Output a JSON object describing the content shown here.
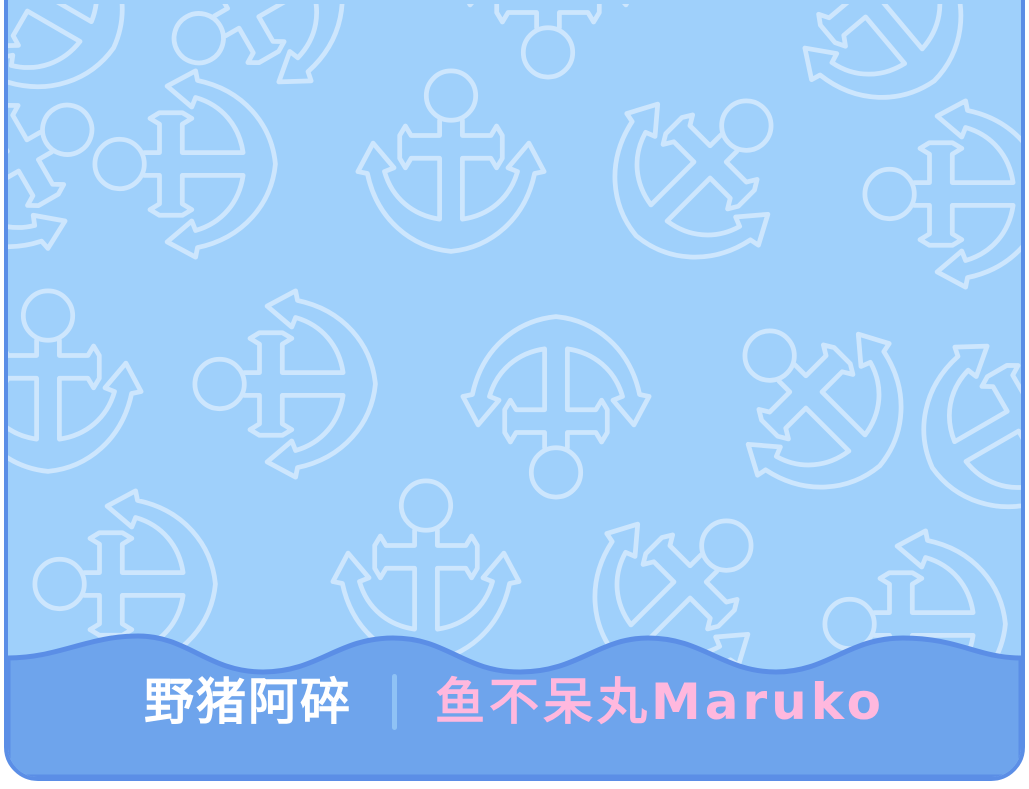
{
  "credits": {
    "left_name": "野猪阿碎",
    "separator": "|",
    "right_name": "鱼不呆丸Maruko"
  },
  "colors": {
    "background": "#9fd0fb",
    "pattern_stroke": "#cde6fd",
    "border": "#5b8ee6",
    "footer": "#6ea4ec",
    "left_name": "#ffffff",
    "right_name": "#ffb8de"
  },
  "pattern": {
    "icon": "anchor-icon"
  }
}
